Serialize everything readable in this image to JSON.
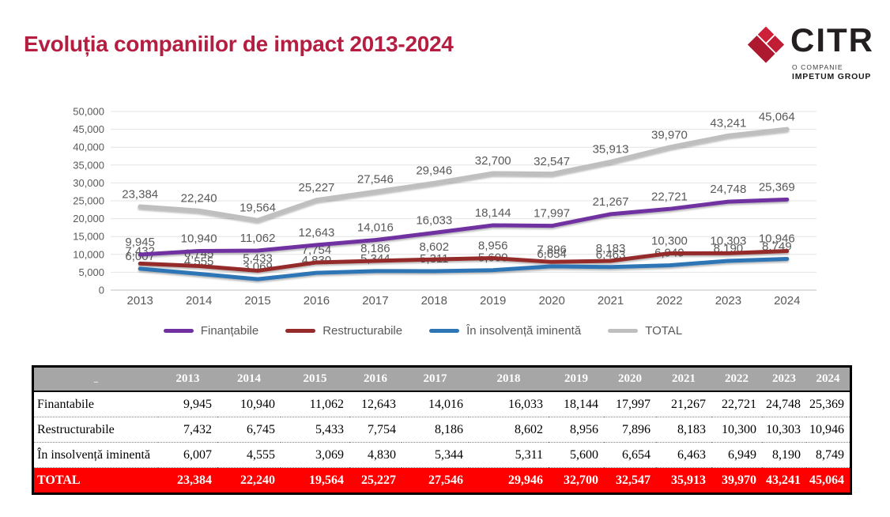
{
  "title": {
    "text": "Evoluția companiilor de impact 2013-2024",
    "color": "#b51e41"
  },
  "logo": {
    "word": "CITR",
    "tagline1": "O COMPANIE",
    "tagline2": "IMPETUM GROUP",
    "diamond_colors": {
      "top": "#ce2139",
      "right": "#c11e36",
      "bottom": "#ad1a30"
    }
  },
  "chart_data": {
    "type": "line",
    "x": [
      "2013",
      "2014",
      "2015",
      "2016",
      "2017",
      "2018",
      "2019",
      "2020",
      "2021",
      "2022",
      "2023",
      "2024"
    ],
    "series": [
      {
        "name": "Finanțabile",
        "color": "#7030a0",
        "width": 5,
        "values": [
          9945,
          10940,
          11062,
          12643,
          14016,
          16033,
          18144,
          17997,
          21267,
          22721,
          24748,
          25369
        ]
      },
      {
        "name": "Restructurabile",
        "color": "#952b2b",
        "width": 5,
        "values": [
          7432,
          6745,
          5433,
          7754,
          8186,
          8602,
          8956,
          7896,
          8183,
          10300,
          10303,
          10946
        ]
      },
      {
        "name": "În insolvență iminentă",
        "color": "#2e75b6",
        "width": 5,
        "values": [
          6007,
          4555,
          3069,
          4830,
          5344,
          5311,
          5600,
          6654,
          6463,
          6949,
          8190,
          8749
        ]
      },
      {
        "name": "TOTAL",
        "color": "#bfbfbf",
        "width": 5.5,
        "values": [
          23384,
          22240,
          19564,
          25227,
          27546,
          29946,
          32700,
          32547,
          35913,
          39970,
          43241,
          45064
        ]
      }
    ],
    "ylim": [
      0,
      50000
    ],
    "ytick_step": 5000,
    "grid": true,
    "data_labels": true,
    "legend_position": "bottom",
    "axis_text_color": "#595959",
    "label_text_color": "#595959",
    "gridline_color": "#e4e4e4",
    "axisline_color": "#bfbfbf"
  },
  "table": {
    "corner_label": "_",
    "years": [
      "2013",
      "2014",
      "2015",
      "2016",
      "2017",
      "2018",
      "2019",
      "2020",
      "2021",
      "2022",
      "2023",
      "2024"
    ],
    "rows": [
      {
        "label": "Finantabile",
        "values": [
          9945,
          10940,
          11062,
          12643,
          14016,
          16033,
          18144,
          17997,
          21267,
          22721,
          24748,
          25369
        ]
      },
      {
        "label": "Restructurabile",
        "values": [
          7432,
          6745,
          5433,
          7754,
          8186,
          8602,
          8956,
          7896,
          8183,
          10300,
          10303,
          10946
        ]
      },
      {
        "label": "În insolvență iminentă",
        "values": [
          6007,
          4555,
          3069,
          4830,
          5344,
          5311,
          5600,
          6654,
          6463,
          6949,
          8190,
          8749
        ]
      }
    ],
    "total_row": {
      "label": "TOTAL",
      "values": [
        23384,
        22240,
        19564,
        25227,
        27546,
        29946,
        32700,
        32547,
        35913,
        39970,
        43241,
        45064
      ]
    },
    "header_bg": "#a6a6a6",
    "total_bg": "#fe0000"
  }
}
